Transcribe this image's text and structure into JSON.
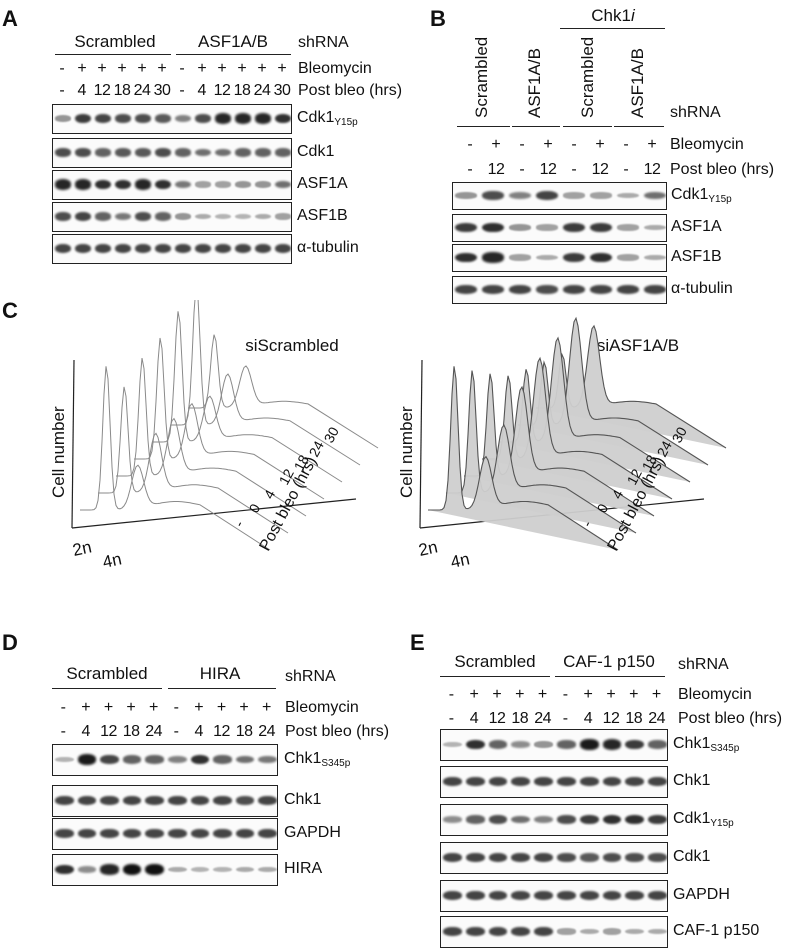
{
  "panels": {
    "A": {
      "label": "A",
      "groups": [
        "Scrambled",
        "ASF1A/B"
      ],
      "shrna_label": "shRNA",
      "bleo_label": "Bleomycin",
      "post_label": "Post bleo (hrs)",
      "bleo_row": [
        "-",
        "+",
        "+",
        "+",
        "+",
        "+",
        "-",
        "+",
        "+",
        "+",
        "+",
        "+"
      ],
      "time_row": [
        "-",
        "4",
        "12",
        "18",
        "24",
        "30",
        "-",
        "4",
        "12",
        "18",
        "24",
        "30"
      ],
      "blots": [
        {
          "name": "Cdk1",
          "sub": "Y15p",
          "intensity": [
            0.35,
            0.8,
            0.75,
            0.7,
            0.7,
            0.65,
            0.45,
            0.7,
            0.9,
            0.9,
            0.9,
            0.85
          ]
        },
        {
          "name": "Cdk1",
          "sub": "",
          "intensity": [
            0.7,
            0.7,
            0.6,
            0.65,
            0.65,
            0.7,
            0.6,
            0.55,
            0.55,
            0.6,
            0.6,
            0.6
          ]
        },
        {
          "name": "ASF1A",
          "sub": "",
          "intensity": [
            0.9,
            0.9,
            0.85,
            0.85,
            0.9,
            0.85,
            0.5,
            0.3,
            0.3,
            0.35,
            0.35,
            0.55
          ]
        },
        {
          "name": "ASF1B",
          "sub": "",
          "intensity": [
            0.7,
            0.75,
            0.6,
            0.5,
            0.7,
            0.6,
            0.35,
            0.25,
            0.2,
            0.2,
            0.25,
            0.3
          ]
        },
        {
          "name": "α-tubulin",
          "sub": "",
          "intensity": [
            0.75,
            0.75,
            0.75,
            0.75,
            0.75,
            0.75,
            0.75,
            0.75,
            0.75,
            0.75,
            0.75,
            0.75
          ]
        }
      ]
    },
    "B": {
      "label": "B",
      "chk1_label": "Chk1",
      "chk1_suffix": "i",
      "groups": [
        "Scrambled",
        "ASF1A/B",
        "Scrambled",
        "ASF1A/B"
      ],
      "shrna_label": "shRNA",
      "bleo_label": "Bleomycin",
      "post_label": "Post bleo (hrs)",
      "bleo_row": [
        "-",
        "+",
        "-",
        "+",
        "-",
        "+",
        "-",
        "+"
      ],
      "time_row": [
        "-",
        "12",
        "-",
        "12",
        "-",
        "12",
        "-",
        "12"
      ],
      "blots": [
        {
          "name": "Cdk1",
          "sub": "Y15p",
          "intensity": [
            0.35,
            0.7,
            0.45,
            0.75,
            0.3,
            0.3,
            0.25,
            0.55
          ]
        },
        {
          "name": "ASF1A",
          "sub": "",
          "intensity": [
            0.8,
            0.85,
            0.35,
            0.3,
            0.8,
            0.8,
            0.3,
            0.25
          ]
        },
        {
          "name": "ASF1B",
          "sub": "",
          "intensity": [
            0.85,
            0.9,
            0.3,
            0.25,
            0.8,
            0.85,
            0.3,
            0.25
          ]
        },
        {
          "name": "α-tubulin",
          "sub": "",
          "intensity": [
            0.75,
            0.75,
            0.75,
            0.7,
            0.75,
            0.75,
            0.75,
            0.75
          ]
        }
      ]
    },
    "C": {
      "label": "C",
      "titles": [
        "siScrambled",
        "siASF1A/B"
      ],
      "ylabel": "Cell number",
      "x_ticks": [
        "2n",
        "4n"
      ],
      "depth_ticks": [
        "-",
        "0",
        "4",
        "12",
        "18",
        "24",
        "30"
      ],
      "depth_label": "Post bleo (hrs)"
    },
    "D": {
      "label": "D",
      "groups": [
        "Scrambled",
        "HIRA"
      ],
      "shrna_label": "shRNA",
      "bleo_label": "Bleomycin",
      "post_label": "Post bleo (hrs)",
      "bleo_row": [
        "-",
        "+",
        "+",
        "+",
        "+",
        "-",
        "+",
        "+",
        "+",
        "+"
      ],
      "time_row": [
        "-",
        "4",
        "12",
        "18",
        "24",
        "-",
        "4",
        "12",
        "18",
        "24"
      ],
      "blots": [
        {
          "name": "Chk1",
          "sub": "S345p",
          "intensity": [
            0.2,
            0.95,
            0.75,
            0.6,
            0.6,
            0.45,
            0.85,
            0.6,
            0.55,
            0.5
          ]
        },
        {
          "name": "Chk1",
          "sub": "",
          "intensity": [
            0.75,
            0.75,
            0.75,
            0.75,
            0.75,
            0.75,
            0.75,
            0.75,
            0.7,
            0.75
          ]
        },
        {
          "name": "GAPDH",
          "sub": "",
          "intensity": [
            0.75,
            0.75,
            0.75,
            0.75,
            0.75,
            0.75,
            0.75,
            0.75,
            0.75,
            0.75
          ]
        },
        {
          "name": "HIRA",
          "sub": "",
          "intensity": [
            0.85,
            0.4,
            0.9,
            1.0,
            1.0,
            0.25,
            0.2,
            0.2,
            0.25,
            0.25
          ]
        }
      ]
    },
    "E": {
      "label": "E",
      "groups": [
        "Scrambled",
        "CAF-1 p150"
      ],
      "shrna_label": "shRNA",
      "bleo_label": "Bleomycin",
      "post_label": "Post bleo (hrs)",
      "bleo_row": [
        "-",
        "+",
        "+",
        "+",
        "+",
        "-",
        "+",
        "+",
        "+",
        "+"
      ],
      "time_row": [
        "-",
        "4",
        "12",
        "18",
        "24",
        "-",
        "4",
        "12",
        "18",
        "24"
      ],
      "blots": [
        {
          "name": "Chk1",
          "sub": "S345p",
          "intensity": [
            0.2,
            0.85,
            0.6,
            0.4,
            0.35,
            0.6,
            0.95,
            0.9,
            0.8,
            0.6
          ]
        },
        {
          "name": "Chk1",
          "sub": "",
          "intensity": [
            0.75,
            0.75,
            0.75,
            0.75,
            0.75,
            0.75,
            0.75,
            0.75,
            0.75,
            0.75
          ]
        },
        {
          "name": "Cdk1",
          "sub": "Y15p",
          "intensity": [
            0.4,
            0.6,
            0.7,
            0.55,
            0.45,
            0.7,
            0.8,
            0.85,
            0.85,
            0.8
          ]
        },
        {
          "name": "Cdk1",
          "sub": "",
          "intensity": [
            0.75,
            0.75,
            0.75,
            0.75,
            0.75,
            0.7,
            0.65,
            0.7,
            0.7,
            0.7
          ]
        },
        {
          "name": "GAPDH",
          "sub": "",
          "intensity": [
            0.75,
            0.75,
            0.75,
            0.75,
            0.75,
            0.75,
            0.75,
            0.75,
            0.75,
            0.75
          ]
        },
        {
          "name": "CAF-1 p150",
          "sub": "",
          "intensity": [
            0.75,
            0.75,
            0.75,
            0.75,
            0.75,
            0.3,
            0.25,
            0.3,
            0.25,
            0.25
          ]
        }
      ]
    }
  }
}
